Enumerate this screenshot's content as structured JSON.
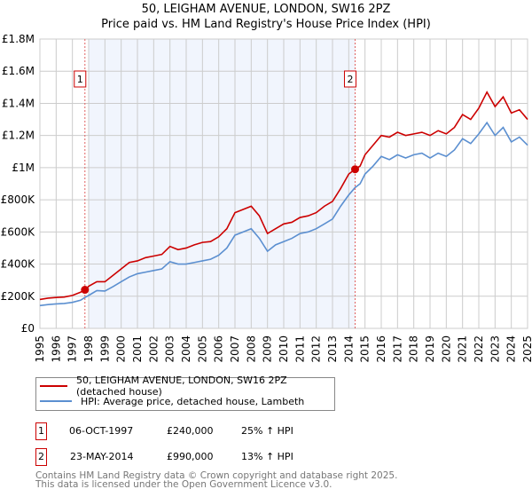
{
  "chart_data": {
    "type": "line",
    "title": "50, LEIGHAM AVENUE, LONDON, SW16 2PZ",
    "subtitle": "Price paid vs. HM Land Registry's House Price Index (HPI)",
    "ylim": [
      0,
      1800000
    ],
    "xlim": [
      1995,
      2025
    ],
    "y_ticks": [
      {
        "v": 0,
        "label": "£0"
      },
      {
        "v": 200000,
        "label": "£200K"
      },
      {
        "v": 400000,
        "label": "£400K"
      },
      {
        "v": 600000,
        "label": "£600K"
      },
      {
        "v": 800000,
        "label": "£800K"
      },
      {
        "v": 1000000,
        "label": "£1M"
      },
      {
        "v": 1200000,
        "label": "£1.2M"
      },
      {
        "v": 1400000,
        "label": "£1.4M"
      },
      {
        "v": 1600000,
        "label": "£1.6M"
      },
      {
        "v": 1800000,
        "label": "£1.8M"
      }
    ],
    "x_ticks": [
      "1995",
      "1996",
      "1997",
      "1998",
      "1999",
      "2000",
      "2001",
      "2002",
      "2003",
      "2004",
      "2005",
      "2006",
      "2007",
      "2008",
      "2009",
      "2010",
      "2011",
      "2012",
      "2013",
      "2014",
      "2015",
      "2016",
      "2017",
      "2018",
      "2019",
      "2020",
      "2021",
      "2022",
      "2023",
      "2024",
      "2025"
    ],
    "grid": true,
    "shaded_range": [
      1998,
      2014.39
    ],
    "series": [
      {
        "name": "50, LEIGHAM AVENUE, LONDON, SW16 2PZ (detached house)",
        "color": "#cc0000",
        "x": [
          1995,
          1995.5,
          1996,
          1996.5,
          1997,
          1997.5,
          1997.77,
          1998,
          1998.5,
          1999,
          1999.5,
          2000,
          2000.5,
          2001,
          2001.5,
          2002,
          2002.5,
          2003,
          2003.5,
          2004,
          2004.5,
          2005,
          2005.5,
          2006,
          2006.5,
          2007,
          2007.5,
          2008,
          2008.5,
          2009,
          2009.5,
          2010,
          2010.5,
          2011,
          2011.5,
          2012,
          2012.5,
          2013,
          2013.5,
          2014,
          2014.39,
          2014.7,
          2015,
          2015.5,
          2016,
          2016.5,
          2017,
          2017.5,
          2018,
          2018.5,
          2019,
          2019.5,
          2020,
          2020.5,
          2021,
          2021.5,
          2022,
          2022.5,
          2023,
          2023.5,
          2024,
          2024.5,
          2025
        ],
        "y": [
          180000,
          188000,
          192000,
          195000,
          205000,
          225000,
          240000,
          262000,
          290000,
          290000,
          330000,
          370000,
          410000,
          420000,
          440000,
          450000,
          460000,
          510000,
          490000,
          500000,
          520000,
          535000,
          540000,
          570000,
          620000,
          720000,
          740000,
          760000,
          700000,
          590000,
          620000,
          650000,
          660000,
          690000,
          700000,
          720000,
          760000,
          790000,
          870000,
          960000,
          990000,
          1010000,
          1080000,
          1140000,
          1200000,
          1190000,
          1220000,
          1200000,
          1210000,
          1220000,
          1200000,
          1230000,
          1210000,
          1250000,
          1330000,
          1300000,
          1370000,
          1470000,
          1380000,
          1440000,
          1340000,
          1360000,
          1300000
        ]
      },
      {
        "name": "HPI: Average price, detached house, Lambeth",
        "color": "#5b8fd0",
        "x": [
          1995,
          1995.5,
          1996,
          1996.5,
          1997,
          1997.5,
          1997.77,
          1998,
          1998.5,
          1999,
          1999.5,
          2000,
          2000.5,
          2001,
          2001.5,
          2002,
          2002.5,
          2003,
          2003.5,
          2004,
          2004.5,
          2005,
          2005.5,
          2006,
          2006.5,
          2007,
          2007.5,
          2008,
          2008.5,
          2009,
          2009.5,
          2010,
          2010.5,
          2011,
          2011.5,
          2012,
          2012.5,
          2013,
          2013.5,
          2014,
          2014.39,
          2014.7,
          2015,
          2015.5,
          2016,
          2016.5,
          2017,
          2017.5,
          2018,
          2018.5,
          2019,
          2019.5,
          2020,
          2020.5,
          2021,
          2021.5,
          2022,
          2022.5,
          2023,
          2023.5,
          2024,
          2024.5,
          2025
        ],
        "y": [
          142000,
          148000,
          152000,
          155000,
          162000,
          175000,
          192000,
          205000,
          235000,
          232000,
          260000,
          290000,
          320000,
          340000,
          350000,
          360000,
          370000,
          415000,
          400000,
          400000,
          410000,
          420000,
          430000,
          455000,
          500000,
          580000,
          600000,
          620000,
          560000,
          480000,
          520000,
          540000,
          560000,
          590000,
          600000,
          620000,
          650000,
          680000,
          760000,
          830000,
          876000,
          900000,
          960000,
          1010000,
          1070000,
          1050000,
          1080000,
          1060000,
          1080000,
          1090000,
          1060000,
          1090000,
          1070000,
          1110000,
          1180000,
          1150000,
          1210000,
          1280000,
          1200000,
          1250000,
          1160000,
          1190000,
          1140000
        ]
      }
    ],
    "sales": [
      {
        "n": "1",
        "x": 1997.77,
        "y": 240000
      },
      {
        "n": "2",
        "x": 2014.39,
        "y": 990000
      }
    ]
  },
  "legend": {
    "red": "50, LEIGHAM AVENUE, LONDON, SW16 2PZ (detached house)",
    "blue": "HPI: Average price, detached house, Lambeth"
  },
  "transactions": [
    {
      "n": "1",
      "date": "06-OCT-1997",
      "price": "£240,000",
      "hpi": "25% ↑ HPI"
    },
    {
      "n": "2",
      "date": "23-MAY-2014",
      "price": "£990,000",
      "hpi": "13% ↑ HPI"
    }
  ],
  "footer": {
    "line1": "Contains HM Land Registry data © Crown copyright and database right 2025.",
    "line2": "This data is licensed under the Open Government Licence v3.0."
  }
}
